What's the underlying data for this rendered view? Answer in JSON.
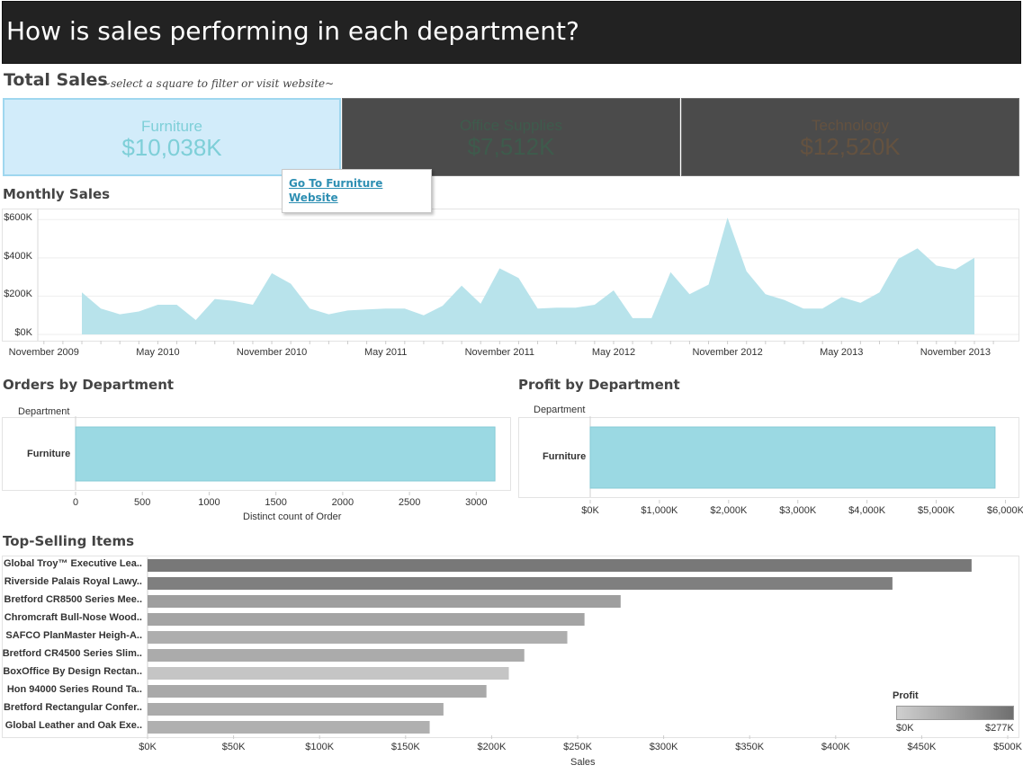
{
  "header": {
    "title": "How is sales performing in each department?"
  },
  "total_sales": {
    "title": "Total Sales",
    "subtitle": "~select a square to filter or visit website~",
    "tiles": [
      {
        "name": "Furniture",
        "value": "$10,038K"
      },
      {
        "name": "Office Supplies",
        "value": "$7,512K"
      },
      {
        "name": "Technology",
        "value": "$12,520K"
      }
    ]
  },
  "tooltip": {
    "link_text": "Go To Furniture Website"
  },
  "colors": {
    "area": "#b8e3eb",
    "bar": "#9bd9e3",
    "selected_tile": "#d2ecfa",
    "header_bg": "#222222"
  },
  "chart_data": [
    {
      "type": "area",
      "title": "Monthly Sales",
      "ylim": [
        0,
        620000
      ],
      "y_ticks": [
        0,
        200000,
        400000,
        600000
      ],
      "y_tick_labels": [
        "$0K",
        "$200K",
        "$400K",
        "$600K"
      ],
      "x_tick_labels": [
        "November 2009",
        "May 2010",
        "November 2010",
        "May 2011",
        "November 2011",
        "May 2012",
        "November 2012",
        "May 2013",
        "November 2013"
      ],
      "x_tick_months": [
        0,
        6,
        12,
        18,
        24,
        30,
        36,
        42,
        48
      ],
      "start_month": 2,
      "values": [
        220000,
        135000,
        105000,
        120000,
        155000,
        155000,
        75000,
        185000,
        175000,
        155000,
        320000,
        265000,
        135000,
        105000,
        125000,
        130000,
        135000,
        135000,
        100000,
        150000,
        255000,
        160000,
        345000,
        295000,
        135000,
        140000,
        140000,
        155000,
        230000,
        85000,
        85000,
        325000,
        210000,
        260000,
        610000,
        330000,
        210000,
        180000,
        135000,
        135000,
        195000,
        165000,
        220000,
        395000,
        450000,
        360000,
        340000,
        400000
      ]
    },
    {
      "type": "bar",
      "title": "Orders by Department",
      "category_label": "Department",
      "categories": [
        "Furniture"
      ],
      "values": [
        3140
      ],
      "xlim": [
        0,
        3200
      ],
      "x_ticks": [
        0,
        500,
        1000,
        1500,
        2000,
        2500,
        3000
      ],
      "x_tick_labels": [
        "0",
        "500",
        "1000",
        "1500",
        "2000",
        "2500",
        "3000"
      ],
      "xlabel": "Distinct count of Order"
    },
    {
      "type": "bar",
      "title": "Profit by Department",
      "category_label": "Department",
      "categories": [
        "Furniture"
      ],
      "values": [
        5850
      ],
      "xlim": [
        0,
        6150
      ],
      "x_ticks": [
        0,
        1000,
        2000,
        3000,
        4000,
        5000,
        6000
      ],
      "x_tick_labels": [
        "$0K",
        "$1,000K",
        "$2,000K",
        "$3,000K",
        "$4,000K",
        "$5,000K",
        "$6,000K"
      ],
      "xlabel": ""
    },
    {
      "type": "bar",
      "title": "Top-Selling Items",
      "categories": [
        "Global Troy™ Executive Lea..",
        "Riverside Palais Royal Lawy..",
        "Bretford CR8500 Series Mee..",
        "Chromcraft Bull-Nose Wood..",
        "SAFCO PlanMaster Heigh-A..",
        "Bretford CR4500 Series Slim..",
        "BoxOffice By Design Rectan..",
        "Hon 94000 Series Round Ta..",
        "Bretford Rectangular Confer..",
        "Global Leather and Oak Exe.."
      ],
      "values": [
        479000,
        433000,
        275000,
        254000,
        244000,
        219000,
        210000,
        197000,
        172000,
        164000
      ],
      "profit_values": [
        250000,
        230000,
        140000,
        125000,
        95000,
        105000,
        30000,
        110000,
        105000,
        90000
      ],
      "xlim": [
        0,
        500000
      ],
      "x_ticks": [
        0,
        50000,
        100000,
        150000,
        200000,
        250000,
        300000,
        350000,
        400000,
        450000,
        500000
      ],
      "x_tick_labels": [
        "$0K",
        "$50K",
        "$100K",
        "$150K",
        "$200K",
        "$250K",
        "$300K",
        "$350K",
        "$400K",
        "$450K",
        "$500K"
      ],
      "xlabel": "Sales",
      "legend": {
        "title": "Profit",
        "min_label": "$0K",
        "max_label": "$277K",
        "max_value": 277000
      }
    }
  ]
}
